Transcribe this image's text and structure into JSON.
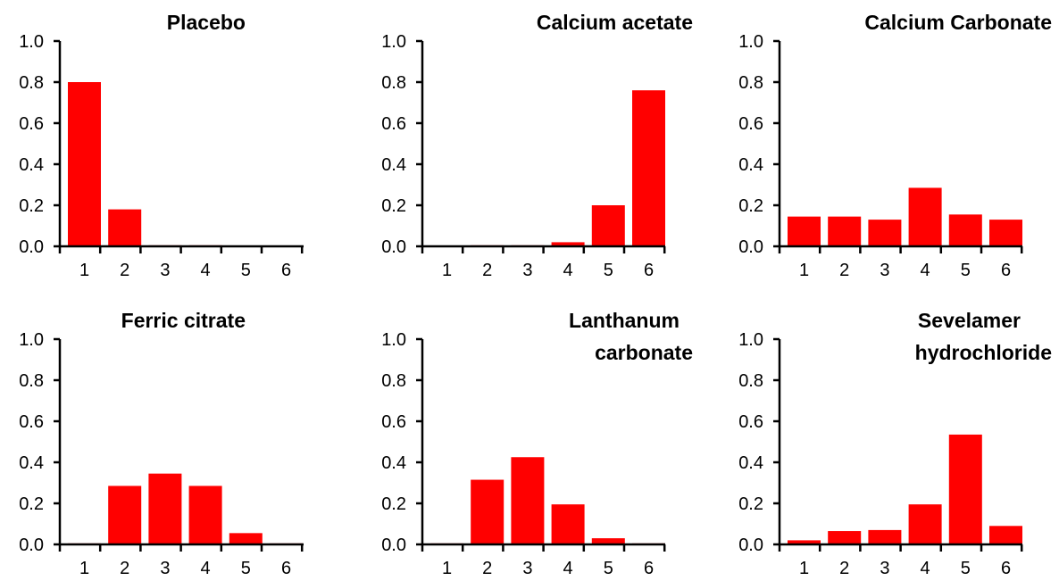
{
  "chart_data": [
    {
      "type": "bar",
      "title": [
        "Placebo"
      ],
      "categories": [
        "1",
        "2",
        "3",
        "4",
        "5",
        "6"
      ],
      "values": [
        0.8,
        0.18,
        0.005,
        0.005,
        0.0,
        0.0
      ],
      "ylim": [
        0,
        1.0
      ],
      "yticks": [
        "0.0",
        "0.2",
        "0.4",
        "0.6",
        "0.8",
        "1.0"
      ],
      "color": "#ff0000"
    },
    {
      "type": "bar",
      "title": [
        "Calcium acetate"
      ],
      "categories": [
        "1",
        "2",
        "3",
        "4",
        "5",
        "6"
      ],
      "values": [
        0.0,
        0.005,
        0.005,
        0.02,
        0.2,
        0.76
      ],
      "ylim": [
        0,
        1.0
      ],
      "yticks": [
        "0.0",
        "0.2",
        "0.4",
        "0.6",
        "0.8",
        "1.0"
      ],
      "color": "#ff0000"
    },
    {
      "type": "bar",
      "title": [
        "Calcium Carbonate"
      ],
      "categories": [
        "1",
        "2",
        "3",
        "4",
        "5",
        "6"
      ],
      "values": [
        0.145,
        0.145,
        0.13,
        0.285,
        0.155,
        0.13
      ],
      "ylim": [
        0,
        1.0
      ],
      "yticks": [
        "0.0",
        "0.2",
        "0.4",
        "0.6",
        "0.8",
        "1.0"
      ],
      "color": "#ff0000"
    },
    {
      "type": "bar",
      "title": [
        "Ferric citrate"
      ],
      "categories": [
        "1",
        "2",
        "3",
        "4",
        "5",
        "6"
      ],
      "values": [
        0.005,
        0.285,
        0.345,
        0.285,
        0.055,
        0.005
      ],
      "ylim": [
        0,
        1.0
      ],
      "yticks": [
        "0.0",
        "0.2",
        "0.4",
        "0.6",
        "0.8",
        "1.0"
      ],
      "color": "#ff0000"
    },
    {
      "type": "bar",
      "title": [
        "Lanthanum",
        "carbonate"
      ],
      "categories": [
        "1",
        "2",
        "3",
        "4",
        "5",
        "6"
      ],
      "values": [
        0.005,
        0.315,
        0.425,
        0.195,
        0.03,
        0.005
      ],
      "ylim": [
        0,
        1.0
      ],
      "yticks": [
        "0.0",
        "0.2",
        "0.4",
        "0.6",
        "0.8",
        "1.0"
      ],
      "color": "#ff0000"
    },
    {
      "type": "bar",
      "title": [
        "Sevelamer",
        "hydrochloride"
      ],
      "categories": [
        "1",
        "2",
        "3",
        "4",
        "5",
        "6"
      ],
      "values": [
        0.02,
        0.065,
        0.07,
        0.195,
        0.535,
        0.09
      ],
      "ylim": [
        0,
        1.0
      ],
      "yticks": [
        "0.0",
        "0.2",
        "0.4",
        "0.6",
        "0.8",
        "1.0"
      ],
      "color": "#ff0000"
    }
  ]
}
